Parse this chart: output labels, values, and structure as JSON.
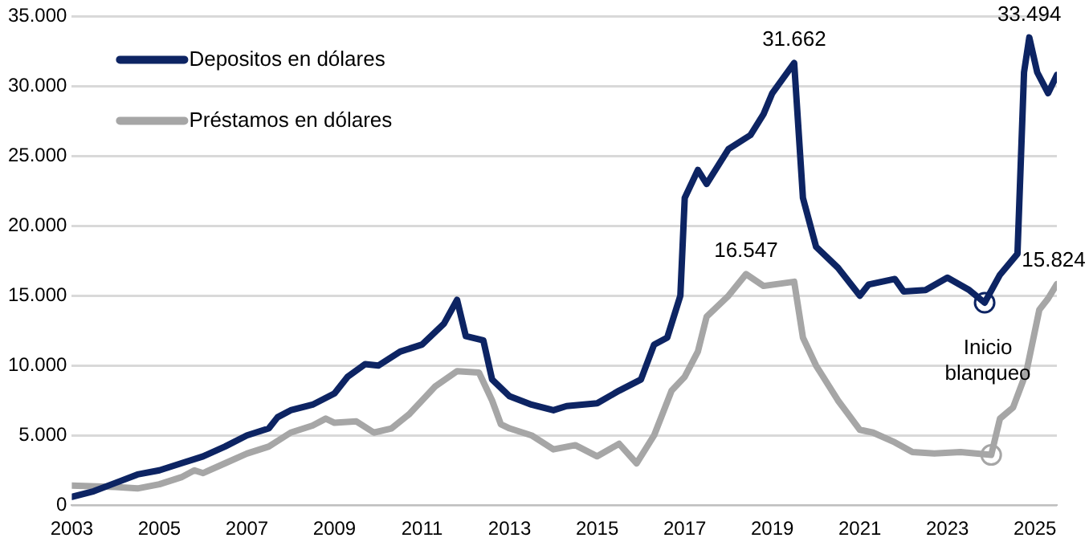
{
  "chart_data": {
    "type": "line",
    "xlim": [
      2003,
      2025.5
    ],
    "xticks": [
      2003,
      2005,
      2007,
      2009,
      2011,
      2013,
      2015,
      2017,
      2019,
      2021,
      2023,
      2025
    ],
    "ylim": [
      0,
      35000
    ],
    "yticks": [
      0,
      {
        "value": 5000,
        "label": "5.000"
      },
      {
        "value": 10000,
        "label": "10.000"
      },
      {
        "value": 15000,
        "label": "15.000"
      },
      {
        "value": 20000,
        "label": "20.000"
      },
      {
        "value": 25000,
        "label": "25.000"
      },
      {
        "value": 30000,
        "label": "30.000"
      },
      {
        "value": 35000,
        "label": "35.000"
      }
    ],
    "grid": "y",
    "legend": "top left",
    "marker": "none",
    "line_style": "solid",
    "series": [
      {
        "name": "Depositos en dólares",
        "color": "#0d2463",
        "x": [
          2003,
          2003.5,
          2004,
          2004.5,
          2005,
          2005.5,
          2006,
          2006.5,
          2007,
          2007.5,
          2007.7,
          2008,
          2008.5,
          2009,
          2009.3,
          2009.7,
          2010,
          2010.5,
          2011,
          2011.5,
          2011.8,
          2012,
          2012.4,
          2012.6,
          2013,
          2013.5,
          2014,
          2014.3,
          2015,
          2015.5,
          2016,
          2016.3,
          2016.6,
          2016.9,
          2017,
          2017.3,
          2017.5,
          2018,
          2018.5,
          2018.8,
          2019,
          2019.5,
          2019.7,
          2020,
          2020.5,
          2021,
          2021.2,
          2021.8,
          2022,
          2022.5,
          2023,
          2023.5,
          2023.85,
          2024.2,
          2024.6,
          2024.75,
          2024.87,
          2025.05,
          2025.3,
          2025.5
        ],
        "values": [
          600,
          1000,
          1600,
          2200,
          2500,
          3000,
          3500,
          4200,
          5000,
          5500,
          6300,
          6800,
          7200,
          8000,
          9200,
          10100,
          10000,
          11000,
          11500,
          13000,
          14700,
          12100,
          11800,
          9000,
          7800,
          7200,
          6800,
          7100,
          7300,
          8200,
          9000,
          11500,
          12000,
          15000,
          22000,
          24000,
          23000,
          25500,
          26500,
          28000,
          29500,
          31662,
          22000,
          18500,
          17000,
          15000,
          15800,
          16200,
          15300,
          15400,
          16300,
          15400,
          14500,
          16500,
          18000,
          31000,
          33494,
          31000,
          29500,
          30800
        ]
      },
      {
        "name": "Préstamos en dólares",
        "color": "#a6a6a6",
        "x": [
          2003,
          2004,
          2004.5,
          2005,
          2005.5,
          2005.8,
          2006,
          2006.5,
          2007,
          2007.5,
          2008,
          2008.5,
          2008.8,
          2009,
          2009.5,
          2009.9,
          2010.3,
          2010.7,
          2011,
          2011.3,
          2011.8,
          2012.3,
          2012.6,
          2012.8,
          2013,
          2013.5,
          2014,
          2014.5,
          2015,
          2015.5,
          2015.9,
          2016.3,
          2016.7,
          2017,
          2017.3,
          2017.5,
          2018,
          2018.4,
          2018.8,
          2019.5,
          2019.7,
          2020,
          2020.5,
          2021,
          2021.3,
          2021.8,
          2022.2,
          2022.7,
          2023.3,
          2024,
          2024.2,
          2024.5,
          2024.8,
          2025.1,
          2025.3,
          2025.5
        ],
        "values": [
          1400,
          1300,
          1200,
          1500,
          2000,
          2500,
          2300,
          3000,
          3700,
          4200,
          5200,
          5700,
          6200,
          5900,
          6000,
          5200,
          5500,
          6500,
          7500,
          8500,
          9600,
          9500,
          7500,
          5800,
          5500,
          5000,
          4000,
          4300,
          3500,
          4400,
          3000,
          5000,
          8200,
          9200,
          11000,
          13500,
          15000,
          16547,
          15700,
          16000,
          12000,
          10000,
          7500,
          5400,
          5200,
          4500,
          3800,
          3700,
          3800,
          3600,
          6200,
          7000,
          9500,
          14000,
          14800,
          15824
        ]
      },
      {
        "type": "scatter",
        "marker": "circle",
        "color": "#ffffff",
        "x": [
          2023.85,
          2024
        ],
        "values": [
          14500,
          3600
        ]
      }
    ],
    "annotations": [
      {
        "text": "31.662",
        "x": 2019.5,
        "y": 31662
      },
      {
        "text": "33.494",
        "x": 2024.87,
        "y": 33494
      },
      {
        "text": "16.547",
        "x": 2018.4,
        "y": 16547
      },
      {
        "text": "15.824",
        "x": 2025.5,
        "y": 15824
      },
      {
        "text": "Inicio blanqueo",
        "x": 2023.85,
        "y": 14500
      }
    ]
  }
}
